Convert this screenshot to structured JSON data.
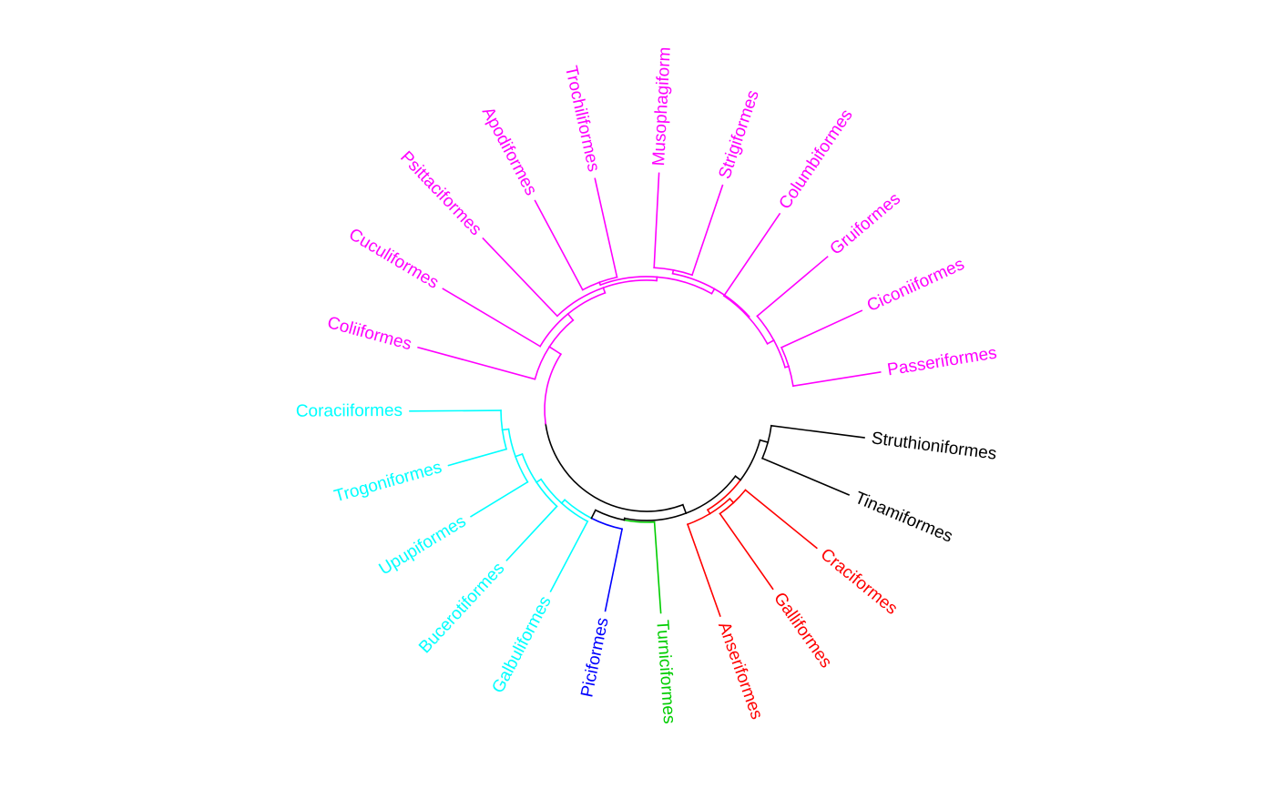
{
  "tree": {
    "layout": "fan",
    "clades": {
      "black": "#000000",
      "red": "#ff0000",
      "green": "#00cd00",
      "blue": "#0000ff",
      "cyan": "#00ffff",
      "magenta": "#ff00ff"
    },
    "tips": [
      {
        "id": "struthioniformes",
        "label": "Struthioniformes",
        "clade": "black"
      },
      {
        "id": "tinamiformes",
        "label": "Tinamiformes",
        "clade": "black"
      },
      {
        "id": "craciformes",
        "label": "Craciformes",
        "clade": "red"
      },
      {
        "id": "galliformes",
        "label": "Galliformes",
        "clade": "red"
      },
      {
        "id": "anseriformes",
        "label": "Anseriformes",
        "clade": "red"
      },
      {
        "id": "turniciformes",
        "label": "Turniciformes",
        "clade": "green"
      },
      {
        "id": "piciformes",
        "label": "Piciformes",
        "clade": "blue"
      },
      {
        "id": "galbuliformes",
        "label": "Galbuliformes",
        "clade": "cyan"
      },
      {
        "id": "bucerotiformes",
        "label": "Bucerotiformes",
        "clade": "cyan"
      },
      {
        "id": "upupiformes",
        "label": "Upupiformes",
        "clade": "cyan"
      },
      {
        "id": "trogoniformes",
        "label": "Trogoniformes",
        "clade": "cyan"
      },
      {
        "id": "coraciiformes",
        "label": "Coraciiformes",
        "clade": "cyan"
      },
      {
        "id": "coliiformes",
        "label": "Coliiformes",
        "clade": "magenta"
      },
      {
        "id": "cuculiformes",
        "label": "Cuculiformes",
        "clade": "magenta"
      },
      {
        "id": "psittaciformes",
        "label": "Psittaciformes",
        "clade": "magenta"
      },
      {
        "id": "apodiformes",
        "label": "Apodiformes",
        "clade": "magenta"
      },
      {
        "id": "trochiliformes",
        "label": "Trochiliformes",
        "clade": "magenta"
      },
      {
        "id": "musophagiformes",
        "label": "Musophagiform",
        "clade": "magenta"
      },
      {
        "id": "strigiformes",
        "label": "Strigiformes",
        "clade": "magenta"
      },
      {
        "id": "columbiformes",
        "label": "Columbiformes",
        "clade": "magenta"
      },
      {
        "id": "gruiformes",
        "label": "Gruiformes",
        "clade": "magenta"
      },
      {
        "id": "ciconiiformes",
        "label": "Ciconiiformes",
        "clade": "magenta"
      },
      {
        "id": "passeriformes",
        "label": "Passeriformes",
        "clade": "magenta"
      }
    ]
  }
}
